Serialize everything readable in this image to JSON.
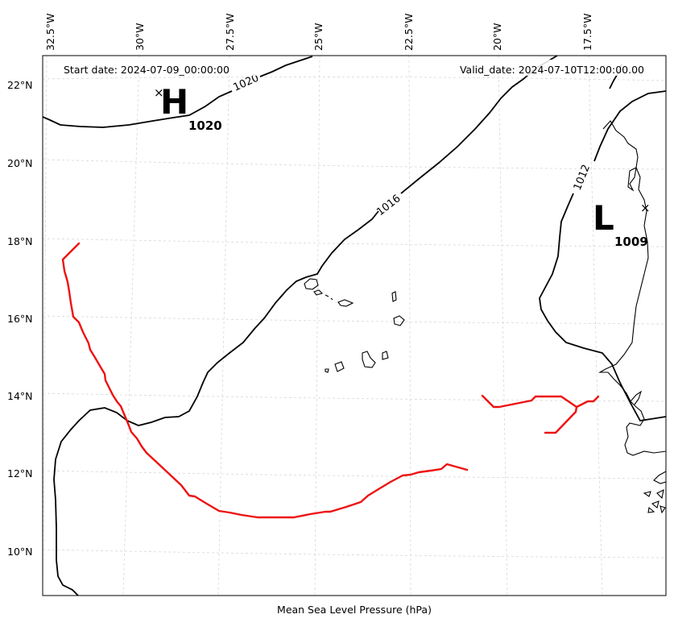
{
  "header": {
    "start_date": "Start date: 2024-07-09_00:00:00",
    "valid_date": "Valid_date: 2024-07-10T12:00:00.00"
  },
  "footer": {
    "caption": "Mean Sea Level Pressure (hPa)"
  },
  "axes": {
    "lon_labels": [
      "32.5°W",
      "30°W",
      "27.5°W",
      "25°W",
      "22.5°W",
      "20°W",
      "17.5°W"
    ],
    "lat_labels": [
      "22°N",
      "20°N",
      "18°N",
      "16°N",
      "14°N",
      "12°N",
      "10°N"
    ]
  },
  "systems": [
    {
      "type": "H",
      "value": "1020"
    },
    {
      "type": "L",
      "value": "1009"
    }
  ],
  "contour_labels": [
    "1020",
    "1016",
    "1012"
  ],
  "colors": {
    "track": "#ee1111",
    "contour": "#000000",
    "grid": "#d7d7d7"
  }
}
